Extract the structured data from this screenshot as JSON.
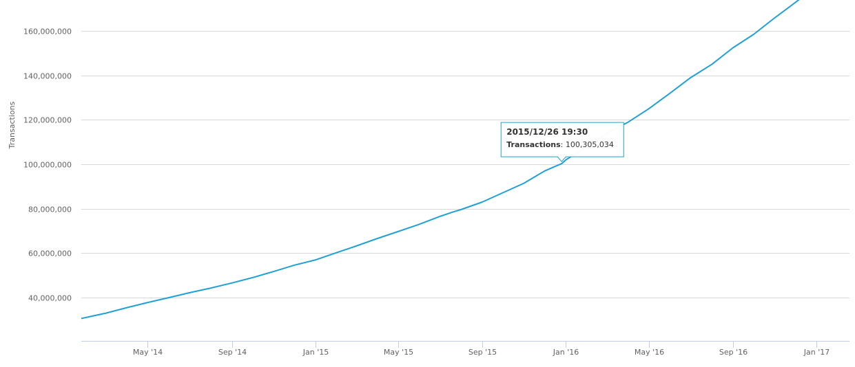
{
  "chart_data": {
    "type": "line",
    "title": "",
    "xlabel": "",
    "ylabel": "Transactions",
    "x_type": "date",
    "xlim": [
      "2014-01-24",
      "2017-02-18"
    ],
    "ylim": [
      20500000,
      174000000
    ],
    "x_ticks": [
      {
        "date": "2014-05-01",
        "label": "May '14"
      },
      {
        "date": "2014-09-01",
        "label": "Sep '14"
      },
      {
        "date": "2015-01-01",
        "label": "Jan '15"
      },
      {
        "date": "2015-05-01",
        "label": "May '15"
      },
      {
        "date": "2015-09-01",
        "label": "Sep '15"
      },
      {
        "date": "2016-01-01",
        "label": "Jan '16"
      },
      {
        "date": "2016-05-01",
        "label": "May '16"
      },
      {
        "date": "2016-09-01",
        "label": "Sep '16"
      },
      {
        "date": "2017-01-01",
        "label": "Jan '17"
      }
    ],
    "y_ticks": [
      {
        "value": 40000000,
        "label": "40,000,000"
      },
      {
        "value": 60000000,
        "label": "60,000,000"
      },
      {
        "value": 80000000,
        "label": "80,000,000"
      },
      {
        "value": 100000000,
        "label": "100,000,000"
      },
      {
        "value": 120000000,
        "label": "120,000,000"
      },
      {
        "value": 140000000,
        "label": "140,000,000"
      },
      {
        "value": 160000000,
        "label": "160,000,000"
      }
    ],
    "grid": true,
    "legend": "none",
    "series": [
      {
        "color": "#1f9fd4",
        "x": [
          "2014-01-24",
          "2014-03-01",
          "2014-04-01",
          "2014-05-01",
          "2014-06-01",
          "2014-07-01",
          "2014-08-01",
          "2014-09-01",
          "2014-10-01",
          "2014-11-01",
          "2014-12-01",
          "2015-01-01",
          "2015-02-01",
          "2015-03-01",
          "2015-04-01",
          "2015-05-01",
          "2015-06-01",
          "2015-07-01",
          "2015-07-20",
          "2015-08-01",
          "2015-09-01",
          "2015-10-01",
          "2015-11-01",
          "2015-12-01",
          "2015-12-26",
          "2016-01-01",
          "2016-02-01",
          "2016-03-01",
          "2016-04-01",
          "2016-05-01",
          "2016-06-01",
          "2016-07-01",
          "2016-08-01",
          "2016-09-01",
          "2016-10-01",
          "2016-11-01",
          "2016-12-10"
        ],
        "values": [
          30600000,
          33000000,
          35500000,
          37800000,
          40000000,
          42200000,
          44300000,
          46600000,
          49000000,
          51800000,
          54600000,
          57000000,
          60300000,
          63200000,
          66600000,
          69700000,
          73000000,
          76500000,
          78500000,
          79600000,
          83000000,
          87200000,
          91500000,
          97000000,
          100305034,
          102000000,
          108000000,
          114000000,
          119000000,
          125000000,
          132000000,
          139000000,
          145000000,
          152500000,
          158500000,
          166000000,
          175000000
        ]
      }
    ],
    "tooltip": {
      "date": "2015/12/26 19:30",
      "series": "Transactions",
      "value": "100,305,034",
      "point_x": "2015-12-26",
      "point_y": 100305034
    }
  }
}
